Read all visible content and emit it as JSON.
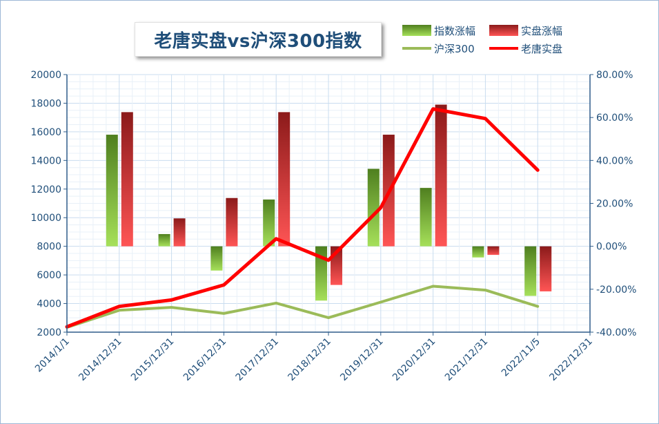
{
  "chart_data": {
    "type": "bar",
    "title": "老唐实盘vs沪深300指数",
    "x_labels": [
      "2014/1/1",
      "2014/12/31",
      "2015/12/31",
      "2016/12/31",
      "2017/12/31",
      "2018/12/31",
      "2019/12/31",
      "2020/12/31",
      "2021/12/31",
      "2022/11/5",
      "2022/12/31"
    ],
    "left_axis": {
      "ylim": [
        2000,
        20000
      ],
      "ticks": [
        "2000",
        "4000",
        "6000",
        "8000",
        "10000",
        "12000",
        "14000",
        "16000",
        "18000",
        "20000"
      ]
    },
    "right_axis": {
      "ylim": [
        -0.4,
        0.8
      ],
      "ticks": [
        "-40.00%",
        "-20.00%",
        "0.00%",
        "20.00%",
        "40.00%",
        "60.00%",
        "80.00%"
      ]
    },
    "grid": true,
    "legend_position": "top-right",
    "series": [
      {
        "name": "指数涨幅",
        "kind": "bar",
        "axis": "right",
        "color_top": "#4f7f1f",
        "color_bottom": "#a6e05a",
        "values": [
          null,
          0.52,
          0.057,
          -0.113,
          0.218,
          -0.253,
          0.361,
          0.272,
          -0.052,
          -0.231,
          null
        ]
      },
      {
        "name": "实盘涨幅",
        "kind": "bar",
        "axis": "right",
        "color_top": "#8b1a1a",
        "color_bottom": "#ff5555",
        "values": [
          null,
          0.625,
          0.13,
          0.225,
          0.625,
          -0.18,
          0.52,
          0.66,
          -0.04,
          -0.21,
          null
        ]
      },
      {
        "name": "沪深300",
        "kind": "line",
        "axis": "left",
        "color": "#9bbb59",
        "values": [
          2330,
          3530,
          3730,
          3310,
          4030,
          3010,
          4100,
          5210,
          4940,
          3800,
          null
        ]
      },
      {
        "name": "老唐实盘",
        "kind": "line",
        "axis": "right",
        "color": "#ff0000",
        "values": [
          -0.375,
          -0.28,
          -0.25,
          -0.18,
          0.035,
          -0.065,
          0.18,
          0.64,
          0.595,
          0.355,
          null
        ]
      }
    ]
  }
}
